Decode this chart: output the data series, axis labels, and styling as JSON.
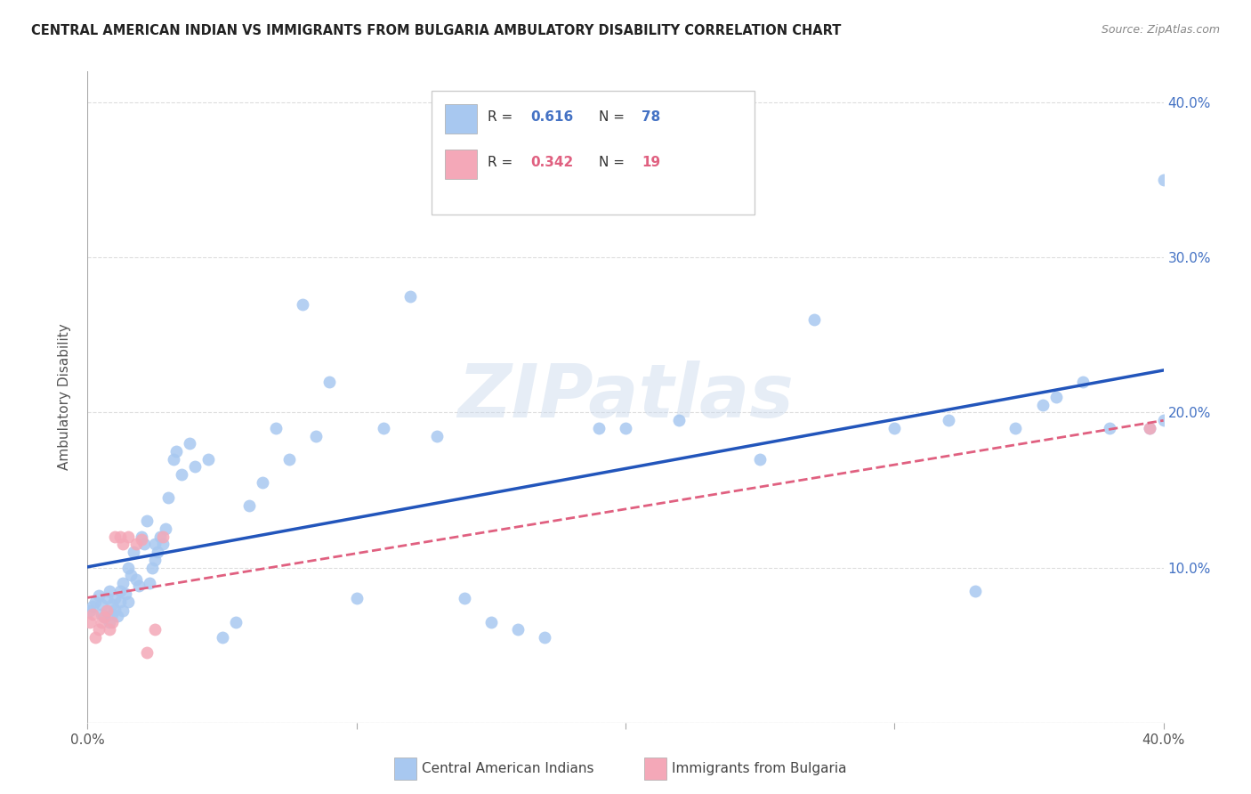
{
  "title": "CENTRAL AMERICAN INDIAN VS IMMIGRANTS FROM BULGARIA AMBULATORY DISABILITY CORRELATION CHART",
  "source": "Source: ZipAtlas.com",
  "ylabel": "Ambulatory Disability",
  "xlim": [
    0.0,
    0.4
  ],
  "ylim": [
    0.0,
    0.42
  ],
  "blue_color": "#A8C8F0",
  "pink_color": "#F4A8B8",
  "blue_line_color": "#2255BB",
  "pink_line_color": "#E06080",
  "watermark": "ZIPatlas",
  "blue_scatter_x": [
    0.001,
    0.002,
    0.003,
    0.004,
    0.005,
    0.005,
    0.006,
    0.007,
    0.007,
    0.008,
    0.008,
    0.009,
    0.009,
    0.01,
    0.01,
    0.011,
    0.012,
    0.012,
    0.013,
    0.013,
    0.014,
    0.015,
    0.015,
    0.016,
    0.017,
    0.018,
    0.019,
    0.02,
    0.021,
    0.022,
    0.023,
    0.024,
    0.025,
    0.025,
    0.026,
    0.027,
    0.028,
    0.029,
    0.03,
    0.032,
    0.033,
    0.035,
    0.038,
    0.04,
    0.045,
    0.05,
    0.055,
    0.06,
    0.065,
    0.07,
    0.075,
    0.08,
    0.085,
    0.09,
    0.1,
    0.11,
    0.12,
    0.13,
    0.14,
    0.15,
    0.16,
    0.17,
    0.19,
    0.2,
    0.22,
    0.25,
    0.27,
    0.3,
    0.32,
    0.33,
    0.345,
    0.355,
    0.36,
    0.37,
    0.38,
    0.395,
    0.4,
    0.4
  ],
  "blue_scatter_y": [
    0.072,
    0.075,
    0.078,
    0.082,
    0.07,
    0.076,
    0.068,
    0.08,
    0.072,
    0.085,
    0.065,
    0.076,
    0.07,
    0.08,
    0.073,
    0.069,
    0.085,
    0.078,
    0.072,
    0.09,
    0.083,
    0.078,
    0.1,
    0.095,
    0.11,
    0.092,
    0.088,
    0.12,
    0.115,
    0.13,
    0.09,
    0.1,
    0.105,
    0.115,
    0.11,
    0.12,
    0.115,
    0.125,
    0.145,
    0.17,
    0.175,
    0.16,
    0.18,
    0.165,
    0.17,
    0.055,
    0.065,
    0.14,
    0.155,
    0.19,
    0.17,
    0.27,
    0.185,
    0.22,
    0.08,
    0.19,
    0.275,
    0.185,
    0.08,
    0.065,
    0.06,
    0.055,
    0.19,
    0.19,
    0.195,
    0.17,
    0.26,
    0.19,
    0.195,
    0.085,
    0.19,
    0.205,
    0.21,
    0.22,
    0.19,
    0.19,
    0.195,
    0.35
  ],
  "pink_scatter_x": [
    0.001,
    0.002,
    0.003,
    0.004,
    0.005,
    0.006,
    0.007,
    0.008,
    0.009,
    0.01,
    0.012,
    0.013,
    0.015,
    0.018,
    0.02,
    0.022,
    0.025,
    0.028,
    0.395
  ],
  "pink_scatter_y": [
    0.065,
    0.07,
    0.055,
    0.06,
    0.065,
    0.068,
    0.072,
    0.06,
    0.065,
    0.12,
    0.12,
    0.115,
    0.12,
    0.115,
    0.118,
    0.045,
    0.06,
    0.12,
    0.19
  ]
}
